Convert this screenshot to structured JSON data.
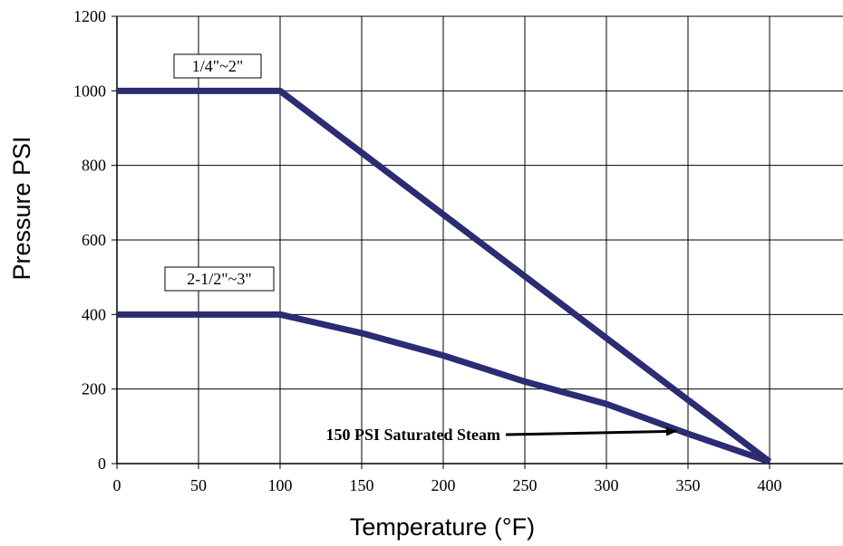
{
  "chart_data": {
    "type": "line",
    "title": "",
    "xlabel": "Temperature (°F)",
    "ylabel": "Pressure PSI",
    "xlim": [
      0,
      400
    ],
    "ylim": [
      0,
      1200
    ],
    "xticks": [
      0,
      50,
      100,
      150,
      200,
      250,
      300,
      350,
      400
    ],
    "yticks": [
      0,
      200,
      400,
      600,
      800,
      1000,
      1200
    ],
    "grid": true,
    "line_color": "#2B2C74",
    "series": [
      {
        "name": "1/4\"~2\"",
        "x": [
          0,
          100,
          400
        ],
        "y": [
          1000,
          1000,
          5
        ]
      },
      {
        "name": "2-1/2\"~3\"",
        "x": [
          0,
          100,
          150,
          200,
          250,
          300,
          350,
          400
        ],
        "y": [
          400,
          400,
          350,
          290,
          220,
          160,
          80,
          5
        ]
      }
    ],
    "annotations": [
      {
        "text": "150 PSI Saturated Steam",
        "x": 345,
        "y": 82
      }
    ]
  }
}
